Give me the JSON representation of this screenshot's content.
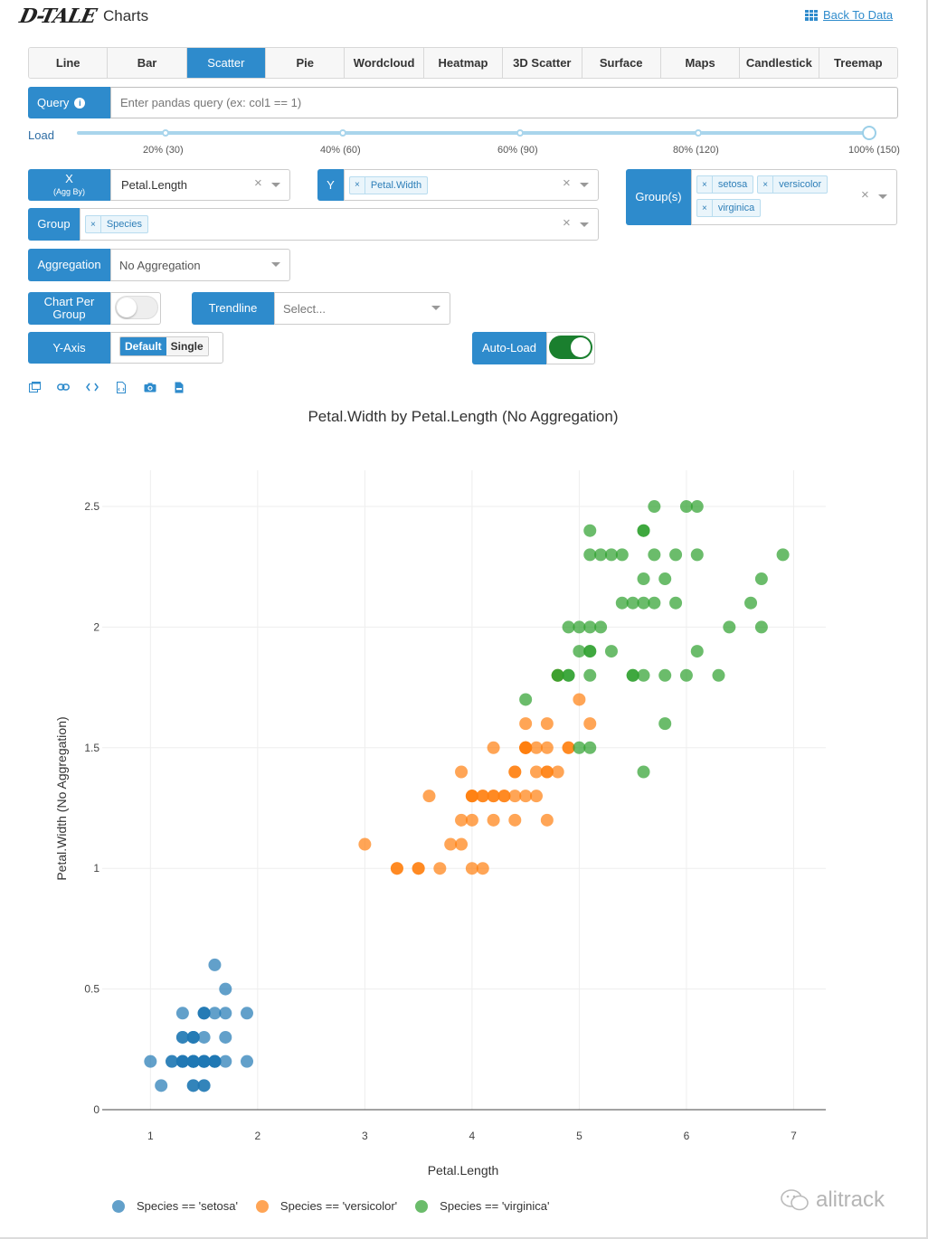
{
  "header": {
    "logo": "D-TALE",
    "title": "Charts",
    "back_link": "Back To Data"
  },
  "tabs": [
    {
      "label": "Line",
      "active": false
    },
    {
      "label": "Bar",
      "active": false
    },
    {
      "label": "Scatter",
      "active": true
    },
    {
      "label": "Pie",
      "active": false
    },
    {
      "label": "Wordcloud",
      "active": false
    },
    {
      "label": "Heatmap",
      "active": false
    },
    {
      "label": "3D Scatter",
      "active": false
    },
    {
      "label": "Surface",
      "active": false
    },
    {
      "label": "Maps",
      "active": false
    },
    {
      "label": "Candlestick",
      "active": false
    },
    {
      "label": "Treemap",
      "active": false
    }
  ],
  "query": {
    "label": "Query",
    "info_icon": "i",
    "placeholder": "Enter pandas query (ex: col1 == 1)"
  },
  "load": {
    "label": "Load",
    "value": 1.0,
    "ticks": [
      "20% (30)",
      "40% (60)",
      "60% (90)",
      "80% (120)",
      "100% (150)"
    ]
  },
  "x": {
    "label": "X",
    "sublabel": "(Agg By)",
    "value": "Petal.Length"
  },
  "y": {
    "label": "Y",
    "values": [
      "Petal.Width"
    ]
  },
  "groups": {
    "label": "Group(s)",
    "values": [
      "setosa",
      "versicolor",
      "virginica"
    ]
  },
  "group": {
    "label": "Group",
    "values": [
      "Species"
    ]
  },
  "aggregation": {
    "label": "Aggregation",
    "value": "No Aggregation"
  },
  "chart_per_group": {
    "label_line1": "Chart Per",
    "label_line2": "Group",
    "on": false
  },
  "trendline": {
    "label": "Trendline",
    "placeholder": "Select..."
  },
  "y_axis": {
    "label": "Y-Axis",
    "options": [
      "Default",
      "Single"
    ],
    "selected": "Default"
  },
  "auto_load": {
    "label": "Auto-Load",
    "on": true
  },
  "toolbar_icons": [
    "popup-icon",
    "link-icon",
    "code-icon",
    "export-code-icon",
    "camera-icon",
    "csv-icon"
  ],
  "watermark": "alitrack",
  "chart_data": {
    "type": "scatter",
    "title": "Petal.Width by Petal.Length (No Aggregation)",
    "xlabel": "Petal.Length",
    "ylabel": "Petal.Width (No Aggregation)",
    "xlim": [
      0.55,
      7.3
    ],
    "ylim": [
      0,
      2.65
    ],
    "xticks": [
      1,
      2,
      3,
      4,
      5,
      6,
      7
    ],
    "yticks": [
      0,
      0.5,
      1,
      1.5,
      2,
      2.5
    ],
    "ytick_labels": [
      "0",
      "0.5",
      "1",
      "1.5",
      "2",
      "2.5"
    ],
    "grid": true,
    "legend_position": "bottom",
    "series": [
      {
        "name": "Species == 'setosa'",
        "color": "#1f77b4",
        "x": [
          1.4,
          1.4,
          1.3,
          1.5,
          1.4,
          1.7,
          1.4,
          1.5,
          1.4,
          1.5,
          1.5,
          1.6,
          1.4,
          1.1,
          1.2,
          1.5,
          1.3,
          1.4,
          1.7,
          1.5,
          1.7,
          1.5,
          1.0,
          1.7,
          1.9,
          1.6,
          1.6,
          1.5,
          1.4,
          1.6,
          1.6,
          1.5,
          1.5,
          1.4,
          1.5,
          1.2,
          1.3,
          1.4,
          1.3,
          1.5,
          1.3,
          1.3,
          1.3,
          1.6,
          1.9,
          1.4,
          1.6,
          1.4,
          1.5,
          1.4
        ],
        "y": [
          0.2,
          0.2,
          0.2,
          0.2,
          0.2,
          0.4,
          0.3,
          0.2,
          0.2,
          0.1,
          0.2,
          0.2,
          0.1,
          0.1,
          0.2,
          0.4,
          0.4,
          0.3,
          0.3,
          0.3,
          0.2,
          0.4,
          0.2,
          0.5,
          0.2,
          0.2,
          0.4,
          0.2,
          0.2,
          0.2,
          0.2,
          0.4,
          0.1,
          0.2,
          0.2,
          0.2,
          0.2,
          0.1,
          0.2,
          0.2,
          0.3,
          0.3,
          0.2,
          0.6,
          0.4,
          0.3,
          0.2,
          0.2,
          0.2,
          0.2
        ]
      },
      {
        "name": "Species == 'versicolor'",
        "color": "#ff7f0e",
        "x": [
          4.7,
          4.5,
          4.9,
          4.0,
          4.6,
          4.5,
          4.7,
          3.3,
          4.6,
          3.9,
          3.5,
          4.2,
          4.0,
          4.7,
          3.6,
          4.4,
          4.5,
          4.1,
          4.5,
          3.9,
          4.8,
          4.0,
          4.9,
          4.7,
          4.3,
          4.4,
          4.8,
          5.0,
          4.5,
          3.5,
          3.8,
          3.7,
          3.9,
          5.1,
          4.5,
          4.5,
          4.7,
          4.4,
          4.1,
          4.0,
          4.4,
          4.6,
          4.0,
          3.3,
          4.2,
          4.2,
          4.2,
          4.3,
          3.0,
          4.1
        ],
        "y": [
          1.4,
          1.5,
          1.5,
          1.3,
          1.5,
          1.3,
          1.6,
          1.0,
          1.3,
          1.4,
          1.0,
          1.5,
          1.0,
          1.4,
          1.3,
          1.4,
          1.5,
          1.0,
          1.5,
          1.1,
          1.8,
          1.3,
          1.5,
          1.2,
          1.3,
          1.4,
          1.4,
          1.7,
          1.5,
          1.0,
          1.1,
          1.0,
          1.2,
          1.6,
          1.5,
          1.6,
          1.5,
          1.3,
          1.3,
          1.3,
          1.2,
          1.4,
          1.2,
          1.0,
          1.3,
          1.2,
          1.3,
          1.3,
          1.1,
          1.3
        ]
      },
      {
        "name": "Species == 'virginica'",
        "color": "#2ca02c",
        "x": [
          6.0,
          5.1,
          5.9,
          5.6,
          5.8,
          6.6,
          4.5,
          6.3,
          5.8,
          6.1,
          5.1,
          5.3,
          5.5,
          5.0,
          5.1,
          5.3,
          5.5,
          6.7,
          6.9,
          5.0,
          5.7,
          4.9,
          6.7,
          4.9,
          5.7,
          6.0,
          4.8,
          4.9,
          5.6,
          5.8,
          6.1,
          6.4,
          5.6,
          5.1,
          5.6,
          6.1,
          5.6,
          5.5,
          4.8,
          5.4,
          5.6,
          5.1,
          5.1,
          5.9,
          5.7,
          5.2,
          5.0,
          5.2,
          5.4,
          5.1
        ],
        "y": [
          2.5,
          1.9,
          2.1,
          1.8,
          2.2,
          2.1,
          1.7,
          1.8,
          1.8,
          2.5,
          2.0,
          1.9,
          2.1,
          2.0,
          2.4,
          2.3,
          1.8,
          2.2,
          2.3,
          1.5,
          2.3,
          2.0,
          2.0,
          1.8,
          2.1,
          1.8,
          1.8,
          1.8,
          2.1,
          1.6,
          1.9,
          2.0,
          2.2,
          1.5,
          1.4,
          2.3,
          2.4,
          1.8,
          1.8,
          2.1,
          2.4,
          2.3,
          1.9,
          2.3,
          2.5,
          2.3,
          1.9,
          2.0,
          2.3,
          1.8
        ]
      }
    ]
  }
}
